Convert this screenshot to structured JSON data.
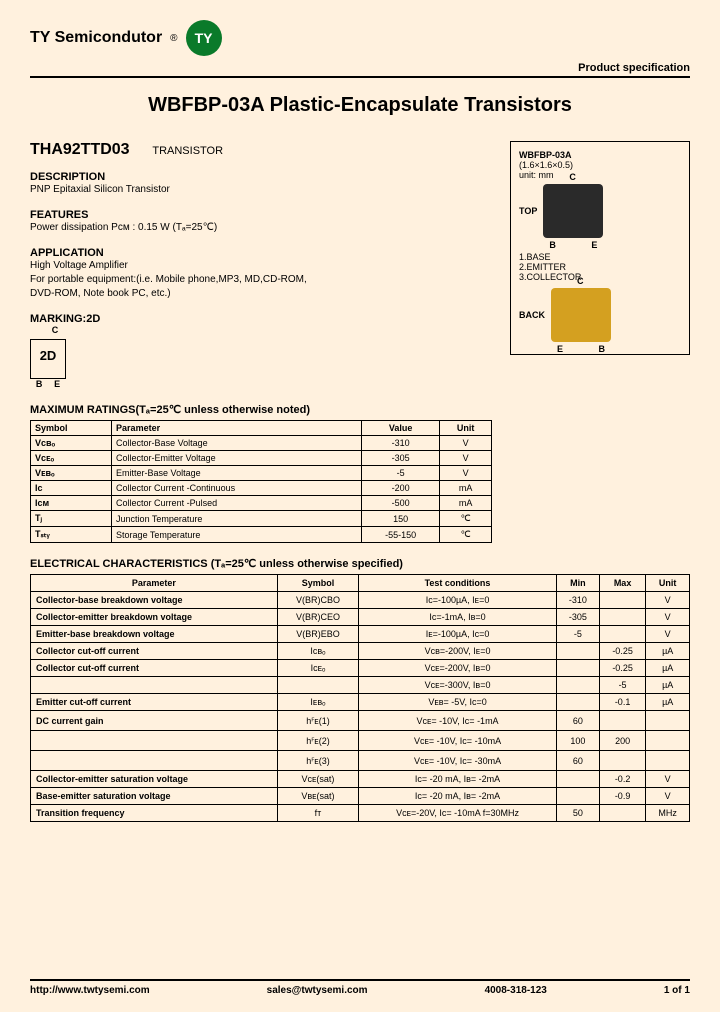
{
  "header": {
    "company": "TY Semicondutor",
    "logo_text": "TY",
    "logo_bg": "#0a7a2a",
    "spec_label": "Product specification"
  },
  "title": "WBFBP-03A Plastic-Encapsulate Transistors",
  "part": {
    "number": "THA92TTD03",
    "type": "TRANSISTOR"
  },
  "description": {
    "heading": "DESCRIPTION",
    "text": "PNP Epitaxial Silicon Transistor"
  },
  "features": {
    "heading": "FEATURES",
    "text": "Power dissipation Pᴄᴍ : 0.15 W (Tₐ=25℃)"
  },
  "application": {
    "heading": "APPLICATION",
    "line1": "High Voltage Amplifier",
    "line2": "For portable equipment:(i.e. Mobile phone,MP3, MD,CD-ROM,",
    "line3": "DVD-ROM, Note book PC, etc.)"
  },
  "marking": {
    "heading": "MARKING:2D",
    "code": "2D",
    "top": "C",
    "bl": "B",
    "br": "E"
  },
  "package": {
    "name": "WBFBP-03A",
    "dims": "(1.6×1.6×0.5)",
    "unit": "unit: mm",
    "top_label": "TOP",
    "back_label": "BACK",
    "pin1": "1.BASE",
    "pin2": "2.EMITTER",
    "pin3": "3.COLLECTOR",
    "C": "C",
    "B": "B",
    "E": "E"
  },
  "max_ratings": {
    "heading": "MAXIMUM RATINGS(Tₐ=25℃ unless otherwise noted)",
    "cols": [
      "Symbol",
      "Parameter",
      "Value",
      "Unit"
    ],
    "rows": [
      [
        "Vᴄʙₒ",
        "Collector-Base Voltage",
        "-310",
        "V"
      ],
      [
        "Vᴄᴇₒ",
        "Collector-Emitter Voltage",
        "-305",
        "V"
      ],
      [
        "Vᴇʙₒ",
        "Emitter-Base Voltage",
        "-5",
        "V"
      ],
      [
        "Iᴄ",
        "Collector Current -Continuous",
        "-200",
        "mA"
      ],
      [
        "Iᴄᴍ",
        "Collector Current -Pulsed",
        "-500",
        "mA"
      ],
      [
        "Tⱼ",
        "Junction Temperature",
        "150",
        "℃"
      ],
      [
        "Tₛₜᵧ",
        "Storage Temperature",
        "-55-150",
        "℃"
      ]
    ]
  },
  "elec": {
    "heading": "ELECTRICAL CHARACTERISTICS (Tₐ=25℃ unless otherwise specified)",
    "cols": [
      "Parameter",
      "Symbol",
      "Test conditions",
      "Min",
      "Max",
      "Unit"
    ],
    "rows": [
      [
        "Collector-base breakdown voltage",
        "V(BR)CBO",
        "Iᴄ=-100µA, Iᴇ=0",
        "-310",
        "",
        "V"
      ],
      [
        "Collector-emitter breakdown voltage",
        "V(BR)CEO",
        "Iᴄ=-1mA, Iʙ=0",
        "-305",
        "",
        "V"
      ],
      [
        "Emitter-base breakdown voltage",
        "V(BR)EBO",
        "Iᴇ=-100µA, Iᴄ=0",
        "-5",
        "",
        "V"
      ],
      [
        "Collector cut-off current",
        "Iᴄʙₒ",
        "Vᴄʙ=-200V, Iᴇ=0",
        "",
        "-0.25",
        "µA"
      ],
      [
        "Collector cut-off current",
        "Iᴄᴇₒ",
        "Vᴄᴇ=-200V, Iʙ=0",
        "",
        "-0.25",
        "µA"
      ],
      [
        "",
        "",
        "Vᴄᴇ=-300V, Iʙ=0",
        "",
        "-5",
        "µA"
      ],
      [
        "Emitter cut-off current",
        "Iᴇʙₒ",
        "Vᴇʙ= -5V, Iᴄ=0",
        "",
        "-0.1",
        "µA"
      ],
      [
        "DC current gain",
        "hꟳᴇ(1)",
        "Vᴄᴇ= -10V, Iᴄ= -1mA",
        "60",
        "",
        ""
      ],
      [
        "",
        "hꟳᴇ(2)",
        "Vᴄᴇ= -10V, Iᴄ= -10mA",
        "100",
        "200",
        ""
      ],
      [
        "",
        "hꟳᴇ(3)",
        "Vᴄᴇ= -10V, Iᴄ= -30mA",
        "60",
        "",
        ""
      ],
      [
        "Collector-emitter saturation voltage",
        "Vᴄᴇ(sat)",
        "Iᴄ= -20 mA, Iʙ= -2mA",
        "",
        "-0.2",
        "V"
      ],
      [
        "Base-emitter saturation voltage",
        "Vʙᴇ(sat)",
        "Iᴄ= -20 mA, Iʙ= -2mA",
        "",
        "-0.9",
        "V"
      ],
      [
        "Transition frequency",
        "fᴛ",
        "Vᴄᴇ=-20V, Iᴄ= -10mA f=30MHz",
        "50",
        "",
        "MHz"
      ]
    ]
  },
  "footer": {
    "url": "http://www.twtysemi.com",
    "email": "sales@twtysemi.com",
    "phone": "4008-318-123",
    "page": "1 of 1"
  },
  "colors": {
    "page_bg": "#fff1de",
    "logo_bg": "#0a7a2a",
    "chip_top": "#2a2a2a",
    "chip_back": "#d4a020",
    "border": "#000000"
  }
}
